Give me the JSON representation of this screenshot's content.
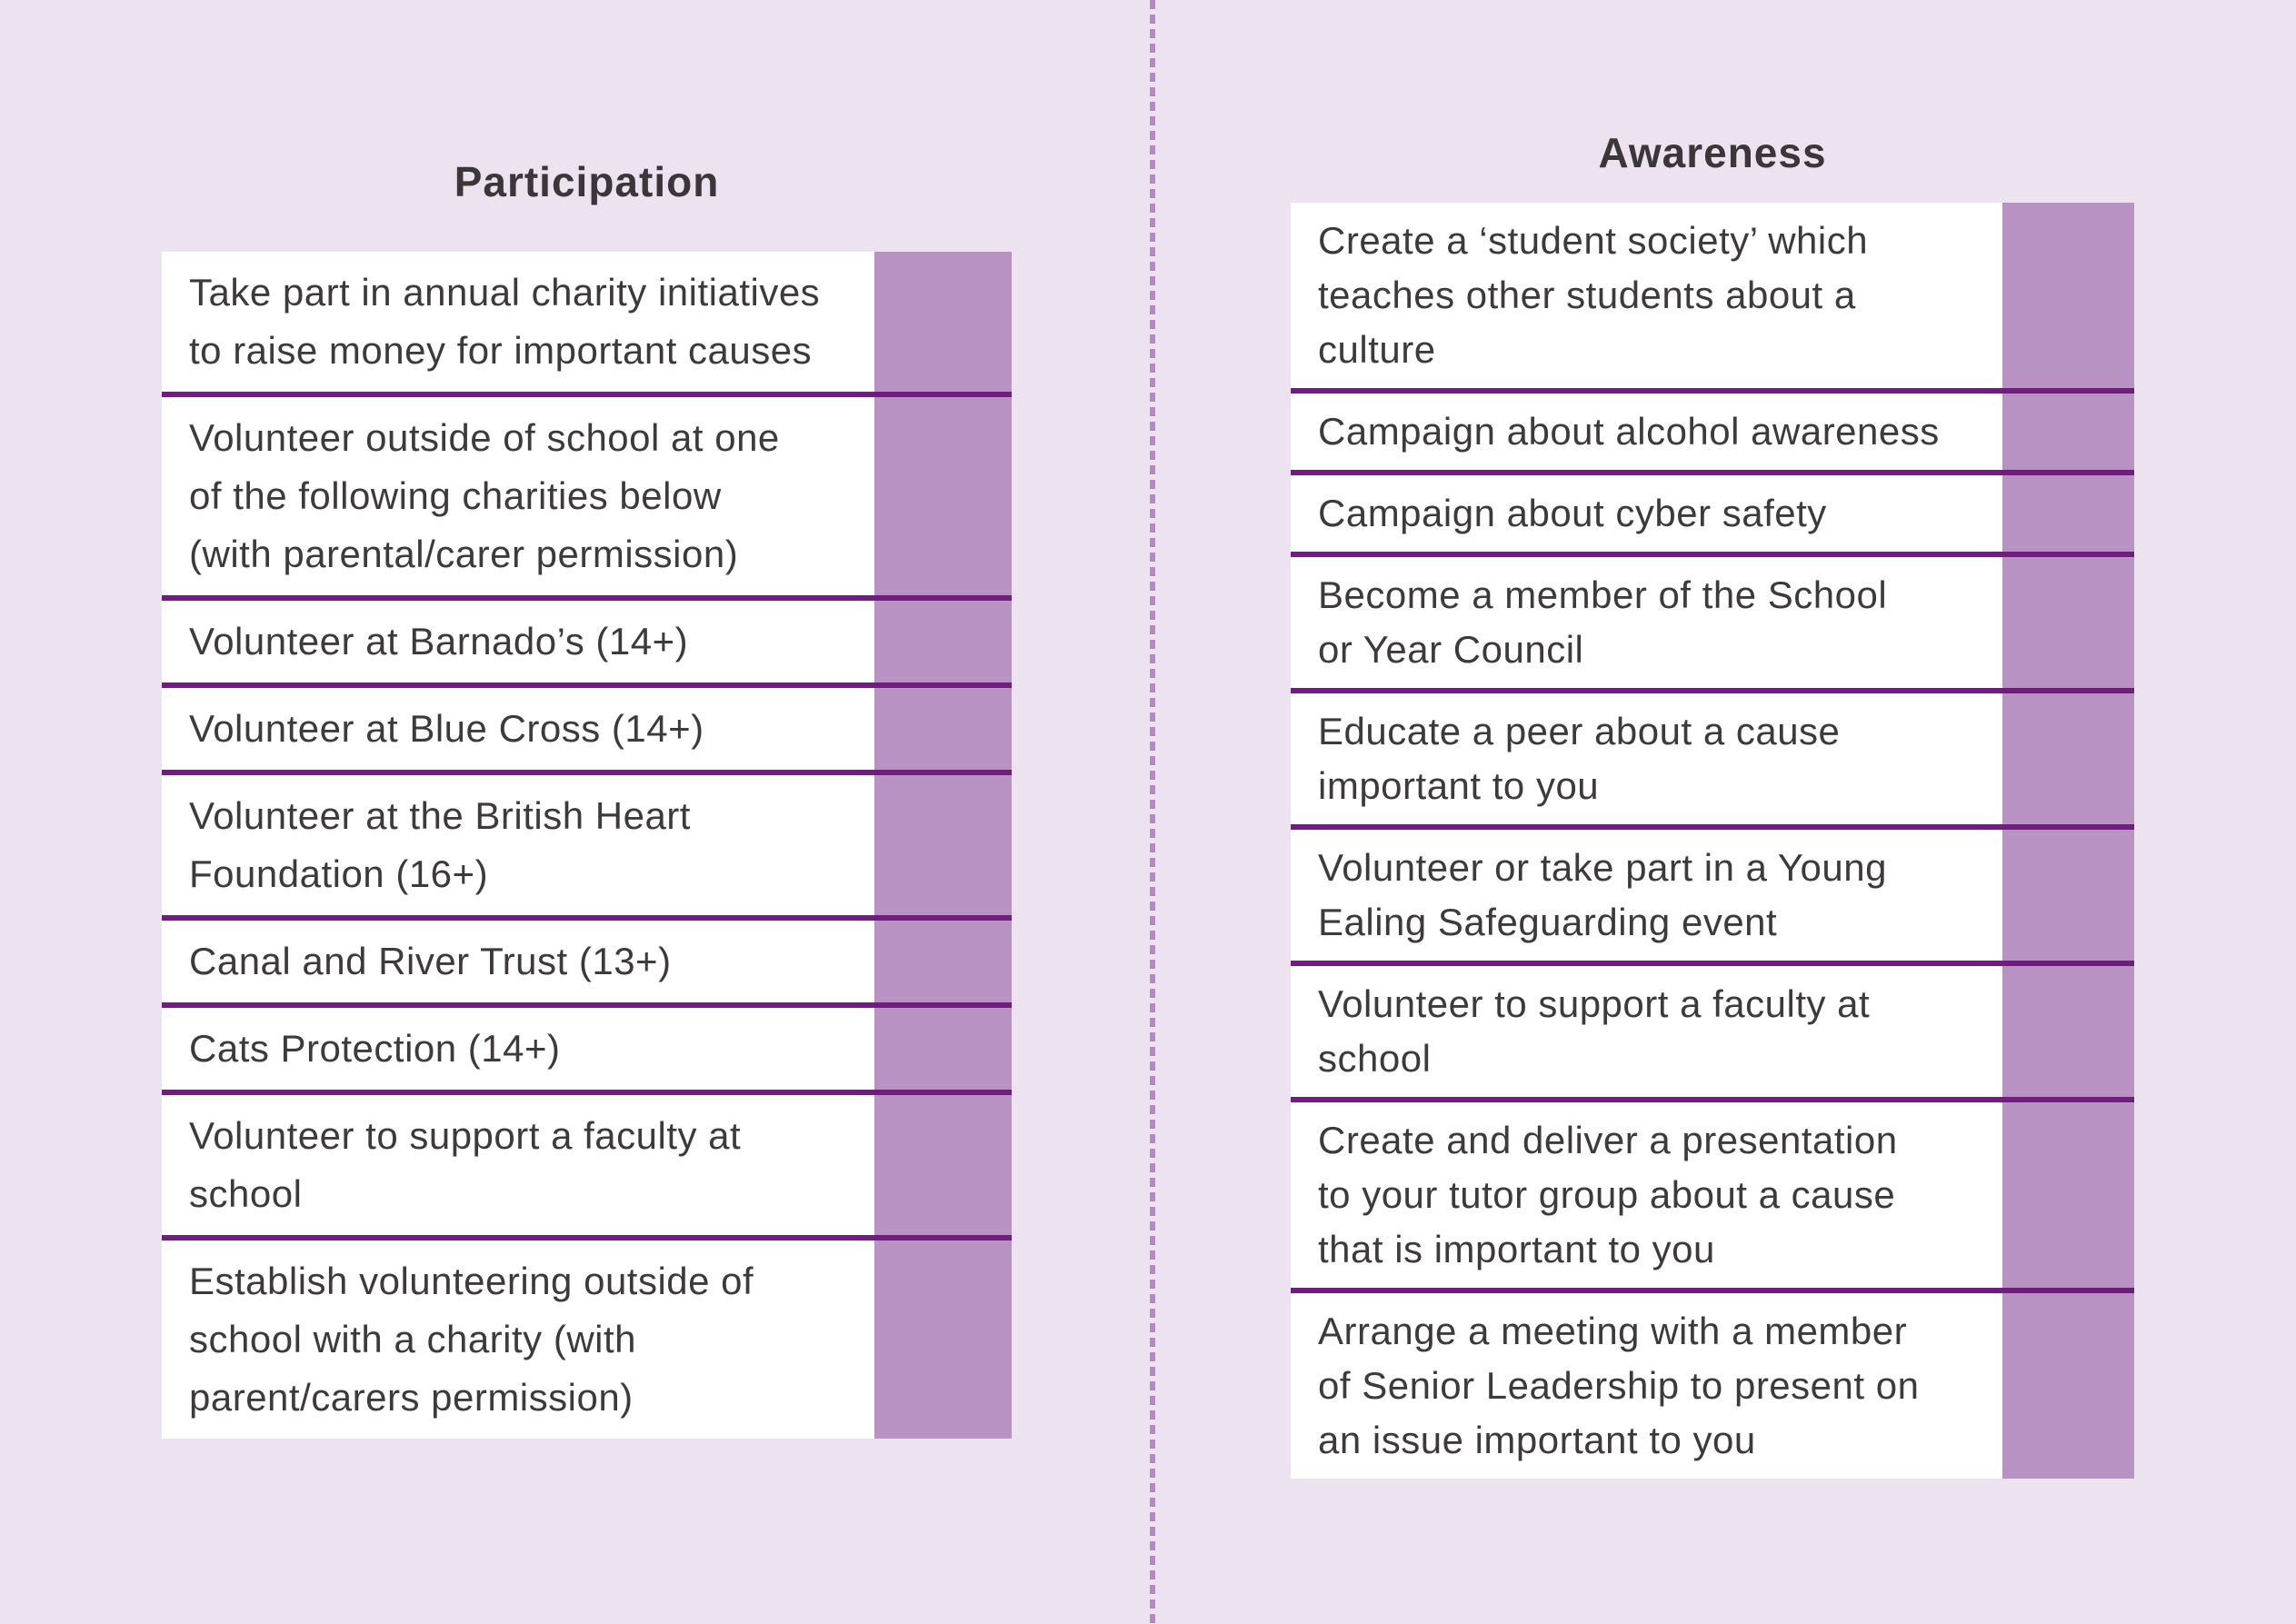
{
  "colors": {
    "background": "#ece2f0",
    "checkbox_column": "#b792c2",
    "row_divider": "#701e7d",
    "fold_dashes": "#b18bc1",
    "text": "#3e3a3c"
  },
  "participation": {
    "title": "Participation",
    "rows": [
      {
        "text": "Take part in annual charity initiatives\nto raise money for important causes"
      },
      {
        "text": "Volunteer outside of school at one\nof the following charities below\n(with parental/carer permission)"
      },
      {
        "text": "Volunteer at Barnado’s (14+)"
      },
      {
        "text": "Volunteer at Blue Cross (14+)"
      },
      {
        "text": "Volunteer at the British Heart\nFoundation (16+)"
      },
      {
        "text": "Canal and River Trust (13+)"
      },
      {
        "text": "Cats Protection (14+)"
      },
      {
        "text": "Volunteer to support a faculty at\nschool"
      },
      {
        "text": "Establish volunteering outside of\nschool with a charity (with\nparent/carers permission)"
      }
    ]
  },
  "awareness": {
    "title": "Awareness",
    "rows": [
      {
        "text": "Create a ‘student society’ which\nteaches other students about a\nculture"
      },
      {
        "text": "Campaign about alcohol awareness"
      },
      {
        "text": "Campaign about cyber safety"
      },
      {
        "text": "Become a member of the School\nor Year Council"
      },
      {
        "text": "Educate a peer about a cause\nimportant to you"
      },
      {
        "text": "Volunteer or take part in a Young\nEaling Safeguarding event"
      },
      {
        "text": "Volunteer to support a faculty at\nschool"
      },
      {
        "text": "Create and deliver a presentation\nto your tutor group about a cause\nthat is important to you"
      },
      {
        "text": "Arrange a meeting with a member\nof Senior Leadership to present on\nan issue important to you"
      }
    ]
  }
}
